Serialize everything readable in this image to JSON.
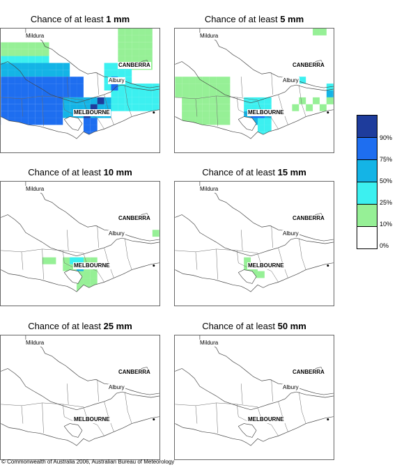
{
  "panels": [
    {
      "prefix": "Chance of at least ",
      "amount": "1 mm"
    },
    {
      "prefix": "Chance of at least ",
      "amount": "5 mm"
    },
    {
      "prefix": "Chance of at least ",
      "amount": "10 mm"
    },
    {
      "prefix": "Chance of at least ",
      "amount": "15 mm"
    },
    {
      "prefix": "Chance of at least ",
      "amount": "25 mm"
    },
    {
      "prefix": "Chance of at least ",
      "amount": "50 mm"
    }
  ],
  "places": {
    "mildura": "Mildura",
    "canberra": "CANBERRA",
    "albury": "Albury",
    "melbourne": "MELBOURNE"
  },
  "legend": {
    "labels": [
      "90%",
      "75%",
      "50%",
      "25%",
      "10%",
      "0%"
    ],
    "colors": [
      "#1e3c9c",
      "#1e6ef0",
      "#14b4e6",
      "#3cf0f0",
      "#96f096",
      "#ffffff"
    ]
  },
  "copyright": "© Commonwealth of Australia 2006, Australian Bureau of Meteorology"
}
